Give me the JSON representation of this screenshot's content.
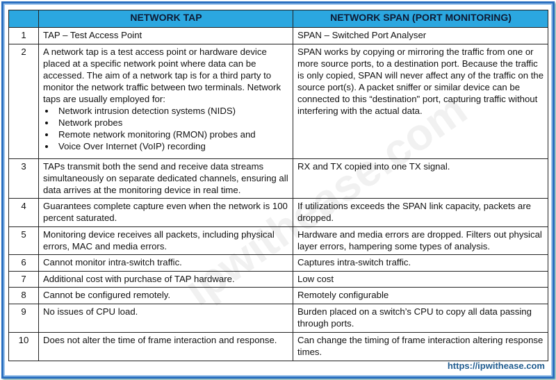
{
  "headers": [
    "",
    "NETWORK TAP",
    "NETWORK SPAN (PORT MONITORING)"
  ],
  "rows": [
    {
      "num": "1",
      "tap": "TAP – Test Access Point",
      "span": "SPAN – Switched Port Analyser"
    },
    {
      "num": "2",
      "tap": "A network tap is a test access point or hardware device placed at a specific network point where data can be accessed. The aim of a network tap is for a third party to monitor the network traffic between two terminals. Network taps are usually employed for:",
      "tap_list": [
        "Network intrusion detection systems (NIDS)",
        "Network probes",
        "Remote network monitoring (RMON) probes and",
        "Voice Over Internet (VoIP) recording"
      ],
      "span": "SPAN works by copying or mirroring the traffic from one or more source ports, to a destination port. Because the traffic is only copied, SPAN will never affect any of the traffic on the source port(s). A packet sniffer or similar device can be connected to this “destination\" port, capturing traffic without interfering with the actual data."
    },
    {
      "num": "3",
      "tap": "TAPs transmit both the send and receive data streams simultaneously on separate dedicated channels, ensuring all data arrives at the monitoring device in real time.",
      "span": "RX and TX copied into one TX signal."
    },
    {
      "num": "4",
      "tap": "Guarantees complete capture even when the network is 100 percent saturated.",
      "span": "If utilizations exceeds the SPAN link capacity, packets are dropped."
    },
    {
      "num": "5",
      "tap": "Monitoring device receives all packets, including physical errors, MAC and media errors.",
      "span": "Hardware and media errors are dropped. Filters out physical layer errors, hampering some types of analysis."
    },
    {
      "num": "6",
      "tap": "Cannot monitor intra-switch traffic.",
      "span": "Captures intra-switch traffic."
    },
    {
      "num": "7",
      "tap": "Additional cost with purchase of TAP hardware.",
      "span": "Low cost"
    },
    {
      "num": "8",
      "tap": "Cannot be configured remotely.",
      "span": "Remotely configurable"
    },
    {
      "num": "9",
      "tap": "No issues of CPU load.",
      "span": "Burden placed on a switch’s CPU to copy all data passing through ports."
    },
    {
      "num": "10",
      "tap": "Does not alter the time of frame interaction and response.",
      "span": "Can change the timing of frame interaction altering response times."
    }
  ],
  "footer": "https://ipwithease.com",
  "watermark": "ipwithease.com"
}
